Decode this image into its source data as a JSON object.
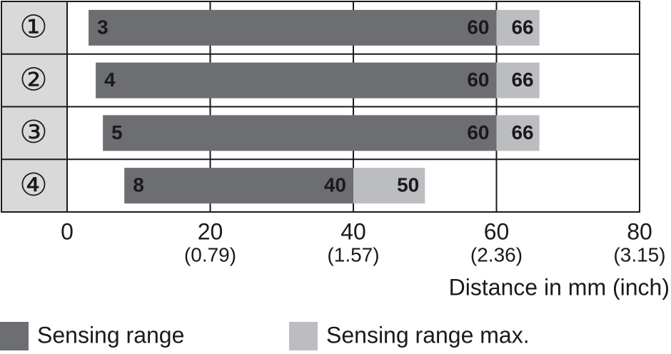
{
  "chart_data": {
    "type": "range-bar",
    "categories": [
      "①",
      "②",
      "③",
      "④"
    ],
    "series": [
      {
        "name": "Sensing range",
        "color": "#6d6e71",
        "low": [
          3,
          4,
          5,
          8
        ],
        "values": [
          60,
          60,
          60,
          40
        ]
      },
      {
        "name": "Sensing range max.",
        "color": "#bcbdc0",
        "values": [
          66,
          66,
          66,
          50
        ]
      }
    ],
    "xlim": [
      0,
      80
    ],
    "xticks": [
      0,
      20,
      40,
      60,
      80
    ],
    "xtick_inch_labels": [
      null,
      "(0.79)",
      "(1.57)",
      "(2.36)",
      "(3.15)"
    ],
    "x_label": "Distance in mm (inch)",
    "grid": true
  }
}
